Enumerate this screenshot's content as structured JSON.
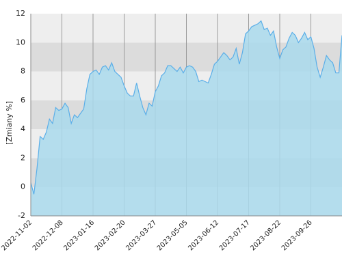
{
  "chart_data": {
    "type": "area",
    "y_label": "[Zmiany %]",
    "categories": [
      "2022-11-02",
      null,
      null,
      null,
      null,
      null,
      null,
      null,
      null,
      null,
      "2022-12-08",
      null,
      null,
      null,
      null,
      null,
      null,
      null,
      null,
      null,
      "2023-01-16",
      null,
      null,
      null,
      null,
      null,
      null,
      null,
      null,
      null,
      "2023-02-20",
      null,
      null,
      null,
      null,
      null,
      null,
      null,
      null,
      null,
      "2023-03-27",
      null,
      null,
      null,
      null,
      null,
      null,
      null,
      null,
      null,
      "2023-05-05",
      null,
      null,
      null,
      null,
      null,
      null,
      null,
      null,
      null,
      "2023-06-12",
      null,
      null,
      null,
      null,
      null,
      null,
      null,
      null,
      null,
      "2023-07-17",
      null,
      null,
      null,
      null,
      null,
      null,
      null,
      null,
      null,
      "2023-08-22",
      null,
      null,
      null,
      null,
      null,
      null,
      null,
      null,
      null,
      "2023-09-26",
      null,
      null,
      null,
      null,
      null,
      null,
      null,
      null,
      null,
      null
    ],
    "values": [
      0.3,
      -0.5,
      1.3,
      3.5,
      3.3,
      3.8,
      4.7,
      4.4,
      5.5,
      5.3,
      5.4,
      5.8,
      5.5,
      4.4,
      5.0,
      4.8,
      5.1,
      5.4,
      6.8,
      7.8,
      8.0,
      8.1,
      7.8,
      8.3,
      8.4,
      8.1,
      8.6,
      8.0,
      7.8,
      7.6,
      7.0,
      6.5,
      6.3,
      6.3,
      7.2,
      6.3,
      5.5,
      5.0,
      5.8,
      5.6,
      6.6,
      7.0,
      7.7,
      7.9,
      8.4,
      8.4,
      8.2,
      8.0,
      8.3,
      7.9,
      8.3,
      8.4,
      8.3,
      8.0,
      7.3,
      7.4,
      7.3,
      7.2,
      7.8,
      8.5,
      8.7,
      9.0,
      9.3,
      9.1,
      8.8,
      9.0,
      9.6,
      8.5,
      9.3,
      10.6,
      10.8,
      11.1,
      11.2,
      11.3,
      11.5,
      10.9,
      11.0,
      10.5,
      10.8,
      9.7,
      8.9,
      9.5,
      9.7,
      10.3,
      10.7,
      10.5,
      10.0,
      10.3,
      10.7,
      10.2,
      10.4,
      9.6,
      8.3,
      7.6,
      8.3,
      9.1,
      8.8,
      8.6,
      7.9,
      7.9,
      10.5
    ],
    "color": "#5aaee8",
    "fill_color": "#a9d9ec",
    "ylim": [
      -2,
      12
    ],
    "yticks": [
      -2,
      0,
      2,
      4,
      6,
      8,
      10,
      12
    ],
    "grid": true
  }
}
